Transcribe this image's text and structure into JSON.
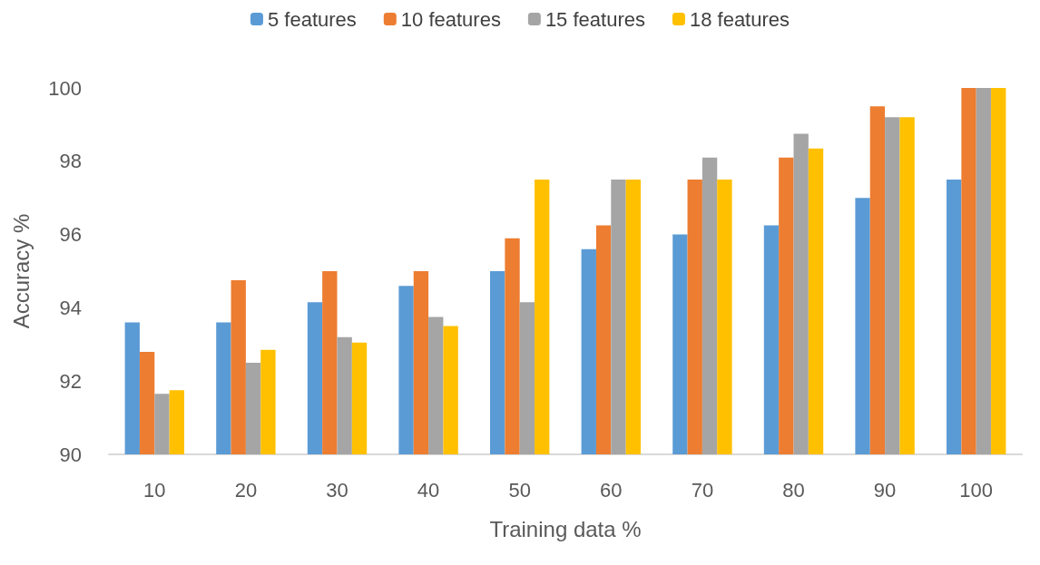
{
  "chart_data": {
    "type": "bar",
    "xlabel": "Training data %",
    "ylabel": "Accuracy %",
    "categories": [
      "10",
      "20",
      "30",
      "40",
      "50",
      "60",
      "70",
      "80",
      "90",
      "100"
    ],
    "series": [
      {
        "name": "5 features",
        "color": "#5b9bd5",
        "values": [
          93.6,
          93.6,
          94.15,
          94.6,
          95.0,
          95.6,
          96.0,
          96.25,
          97.0,
          97.5
        ]
      },
      {
        "name": "10 features",
        "color": "#ed7d31",
        "values": [
          92.8,
          94.75,
          95.0,
          95.0,
          95.9,
          96.25,
          97.5,
          98.1,
          99.5,
          100
        ]
      },
      {
        "name": "15 features",
        "color": "#a5a5a5",
        "values": [
          91.65,
          92.5,
          93.2,
          93.75,
          94.15,
          97.5,
          98.1,
          98.75,
          99.2,
          100
        ]
      },
      {
        "name": "18 features",
        "color": "#ffc000",
        "values": [
          91.75,
          92.85,
          93.05,
          93.5,
          97.5,
          97.5,
          97.5,
          98.35,
          99.2,
          100
        ]
      }
    ],
    "ylim": [
      90,
      100
    ],
    "yticks": [
      90,
      92,
      94,
      96,
      98,
      100
    ],
    "grid": false,
    "legend": "top"
  }
}
